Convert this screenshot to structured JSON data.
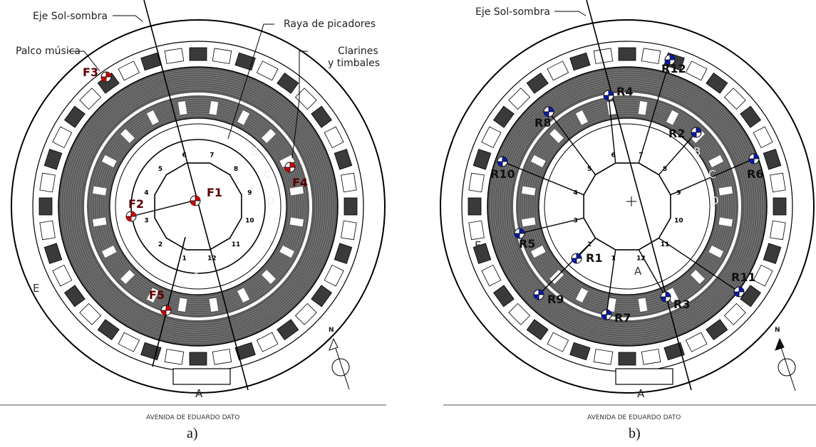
{
  "panels": [
    {
      "id": "a",
      "caption": "a)",
      "street_label": "AVENIDA DE EDUARDO DATO",
      "axis_label": "Eje Sol-sombra",
      "annotations": {
        "raya": "Raya de picadores",
        "palco": "Palco música",
        "clarines_line1": "Clarines",
        "clarines_line2": "y timbales"
      },
      "gate_letters": [
        "A",
        "B",
        "C",
        "D",
        "E",
        "A"
      ],
      "north_label": "N",
      "node_numbers": [
        "1",
        "2",
        "3",
        "4",
        "5",
        "6",
        "7",
        "8",
        "9",
        "10",
        "11",
        "12"
      ],
      "sources": [
        "F1",
        "F2",
        "F3",
        "F4",
        "F5"
      ]
    },
    {
      "id": "b",
      "caption": "b)",
      "street_label": "AVENIDA DE EDUARDO DATO",
      "axis_label": "Eje Sol-sombra",
      "gate_letters": [
        "A",
        "B",
        "C",
        "D",
        "E",
        "A"
      ],
      "north_label": "N",
      "node_numbers": [
        "1",
        "2",
        "3",
        "4",
        "5",
        "6",
        "7",
        "8",
        "9",
        "10",
        "11",
        "12"
      ],
      "receivers": [
        "R1",
        "R2",
        "R3",
        "R4",
        "R5",
        "R6",
        "R7",
        "R8",
        "R9",
        "R10",
        "R11",
        "R12"
      ]
    }
  ],
  "colors": {
    "stands": "#5a5a5a",
    "structure": "#000000",
    "source_marker": "#d40000",
    "receiver_marker": "#0a1aa8"
  }
}
